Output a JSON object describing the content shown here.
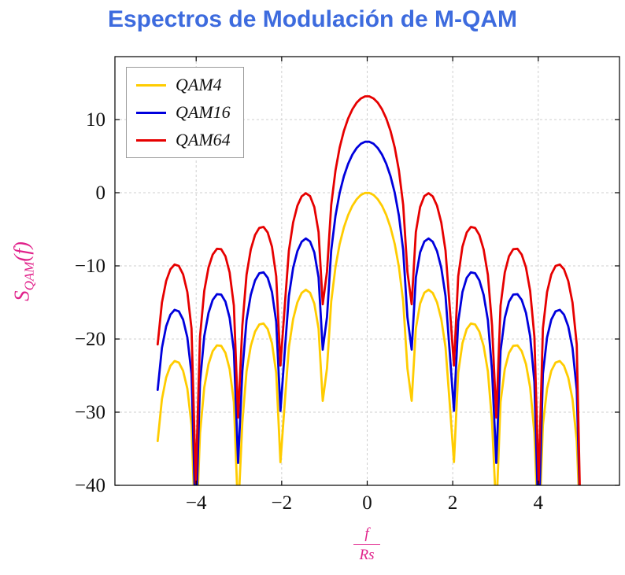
{
  "styles": {
    "title_color": "#3D6BDE",
    "axis_label_color": "#E0218A",
    "grid_color": "#CFCFCF",
    "axis_color": "#000000",
    "tick_label_color": "#111111",
    "legend_border_color": "#9A9A9A",
    "background": "#FFFFFF"
  },
  "ylabel_parts": {
    "base": "S",
    "subscript": "QAM",
    "suffix": "(f)"
  },
  "xlabel_parts": {
    "numerator": "f",
    "denominator": "Rs"
  },
  "chart_data": {
    "type": "line",
    "title": "Espectros de Modulación de M-QAM",
    "xlabel": "f/Rs",
    "ylabel": "S_QAM(f)",
    "xlim": [
      -5.9,
      5.9
    ],
    "ylim": [
      -40,
      18.6
    ],
    "x_ticks": [
      -4,
      -2,
      0,
      2,
      4
    ],
    "y_ticks": [
      -40,
      -30,
      -20,
      -10,
      0,
      10
    ],
    "grid": true,
    "grid_style": "dashed",
    "legend_position": "top-left",
    "function": "S(f) = 10*log10(sinc(f)^2) + offset_db, with sinc(f)=sin(pi*f)/(pi*f) and f in units of f/Rs",
    "domain": [
      -4.9,
      4.999
    ],
    "samples": 101,
    "series": [
      {
        "name": "QAM4",
        "color": "#FFCC00",
        "offset_db": 0,
        "peak_db": 0
      },
      {
        "name": "QAM16",
        "color": "#0000DD",
        "offset_db": 7,
        "peak_db": 7
      },
      {
        "name": "QAM64",
        "color": "#E60000",
        "offset_db": 13.2,
        "peak_db": 13.2
      }
    ],
    "nulls_at": [
      -4,
      -3,
      -2,
      -1,
      1,
      2,
      3,
      4
    ],
    "first_sidelobe_db_relative": -13.3,
    "endpoint_values_db": {
      "QAM4": -33.9,
      "QAM16": -26.9,
      "QAM64": -20.7
    }
  }
}
